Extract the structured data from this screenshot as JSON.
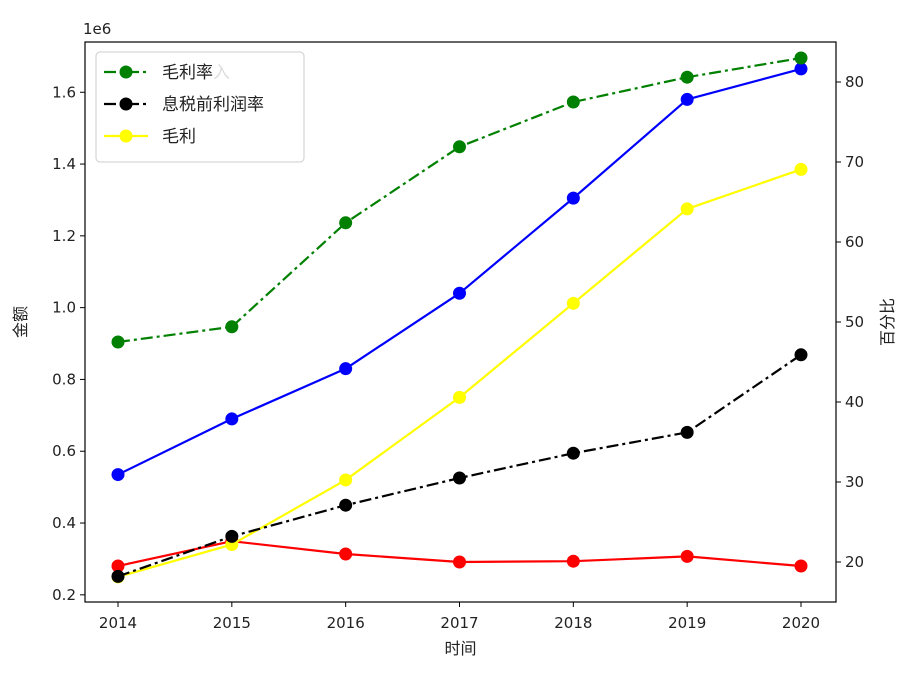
{
  "chart_data": {
    "type": "line",
    "xlabel": "时间",
    "ylabel_left": "金额",
    "ylabel_right": "百分比",
    "offset_text": "1e6",
    "categories": [
      "2014",
      "2015",
      "2016",
      "2017",
      "2018",
      "2019",
      "2020"
    ],
    "ylim_left": [
      0.18,
      1.74
    ],
    "ylim_right": [
      15,
      85
    ],
    "yticks_left": [
      "0.2",
      "0.4",
      "0.6",
      "0.8",
      "1.0",
      "1.2",
      "1.4",
      "1.6"
    ],
    "yticks_right": [
      "20",
      "30",
      "40",
      "50",
      "60",
      "70",
      "80"
    ],
    "series_left": [
      {
        "key": "revenue",
        "color": "#0000ff",
        "style": "solid",
        "values": [
          0.535,
          0.69,
          0.83,
          1.04,
          1.305,
          1.58,
          1.665
        ]
      },
      {
        "key": "gross_profit",
        "color": "#ffff00",
        "style": "solid",
        "values": [
          0.25,
          0.34,
          0.52,
          0.75,
          1.012,
          1.275,
          1.385
        ]
      }
    ],
    "series_right": [
      {
        "key": "gross_margin",
        "color": "#008000",
        "style": "dashdot",
        "values": [
          47.5,
          49.4,
          62.4,
          71.9,
          77.5,
          80.6,
          83.0
        ]
      },
      {
        "key": "ebit_margin",
        "color": "#000000",
        "style": "dashdot",
        "values": [
          18.2,
          23.2,
          27.1,
          30.5,
          33.6,
          36.2,
          45.9
        ]
      },
      {
        "key": "other_margin",
        "color": "#ff0000",
        "style": "solid",
        "values": [
          19.5,
          22.6,
          21.0,
          20.0,
          20.1,
          20.7,
          19.5
        ]
      }
    ],
    "legend": {
      "placement": "upper-left",
      "entries": [
        {
          "label": "毛利率",
          "color": "#008000",
          "style": "dashdot"
        },
        {
          "label": "息税前利润率",
          "color": "#000000",
          "style": "dashdot"
        },
        {
          "label": "毛利",
          "color": "#ffff00",
          "style": "solid"
        }
      ],
      "hidden_fragment": "入"
    }
  }
}
